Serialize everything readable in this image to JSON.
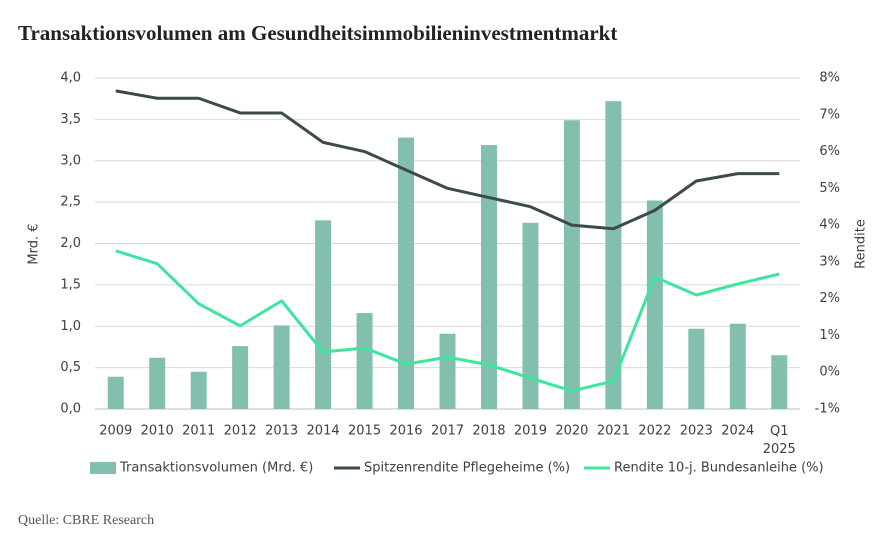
{
  "chart_data": {
    "type": "bar",
    "title": "Transaktionsvolumen am Gesundheitsimmobilieninvestmentmarkt",
    "source": "Quelle: CBRE Research",
    "y_label": "Mrd. €",
    "y2_label": "Rendite",
    "categories": [
      "2009",
      "2010",
      "2011",
      "2012",
      "2013",
      "2014",
      "2015",
      "2016",
      "2017",
      "2018",
      "2019",
      "2020",
      "2021",
      "2022",
      "2023",
      "2024",
      "Q1 2025"
    ],
    "ylim": [
      0,
      4
    ],
    "yticks": [
      {
        "value": 0,
        "label": "0,0"
      },
      {
        "value": 0.5,
        "label": "0,5"
      },
      {
        "value": 1,
        "label": "1,0"
      },
      {
        "value": 1.5,
        "label": "1,5"
      },
      {
        "value": 2,
        "label": "2,0"
      },
      {
        "value": 2.5,
        "label": "2,5"
      },
      {
        "value": 3,
        "label": "3,0"
      },
      {
        "value": 3.5,
        "label": "3,5"
      },
      {
        "value": 4,
        "label": "4,0"
      }
    ],
    "y2lim": [
      -1,
      8
    ],
    "y2ticks": [
      {
        "value": -1,
        "label": "-1%"
      },
      {
        "value": 0,
        "label": "0%"
      },
      {
        "value": 1,
        "label": "1%"
      },
      {
        "value": 2,
        "label": "2%"
      },
      {
        "value": 3,
        "label": "3%"
      },
      {
        "value": 4,
        "label": "4%"
      },
      {
        "value": 5,
        "label": "5%"
      },
      {
        "value": 6,
        "label": "6%"
      },
      {
        "value": 7,
        "label": "7%"
      },
      {
        "value": 8,
        "label": "8%"
      }
    ],
    "grid": true,
    "legend": "bottom",
    "series": [
      {
        "name": "Transaktionsvolumen (Mrd. €)",
        "type": "bar",
        "color": "#83bfae",
        "values": [
          0.39,
          0.62,
          0.45,
          0.76,
          1.01,
          2.28,
          1.16,
          3.28,
          0.91,
          3.19,
          2.25,
          3.49,
          3.72,
          2.52,
          0.97,
          1.03,
          0.65
        ]
      },
      {
        "name": "Spitzenrendite Pflegeheime (%)",
        "type": "line",
        "axis": "y2",
        "color": "#3d4a4b",
        "values": [
          7.65,
          7.45,
          7.45,
          7.05,
          7.05,
          6.25,
          6.0,
          5.5,
          5.0,
          4.75,
          4.5,
          4.0,
          3.9,
          4.4,
          5.2,
          5.4,
          5.4
        ]
      },
      {
        "name": "Rendite 10-j. Bundesanleihe (%)",
        "type": "line",
        "axis": "y2",
        "color": "#3ee59d",
        "values": [
          3.3,
          2.95,
          1.86,
          1.26,
          1.94,
          0.55,
          0.66,
          0.22,
          0.41,
          0.2,
          -0.16,
          -0.51,
          -0.24,
          2.59,
          2.1,
          2.4,
          2.67
        ]
      }
    ]
  }
}
